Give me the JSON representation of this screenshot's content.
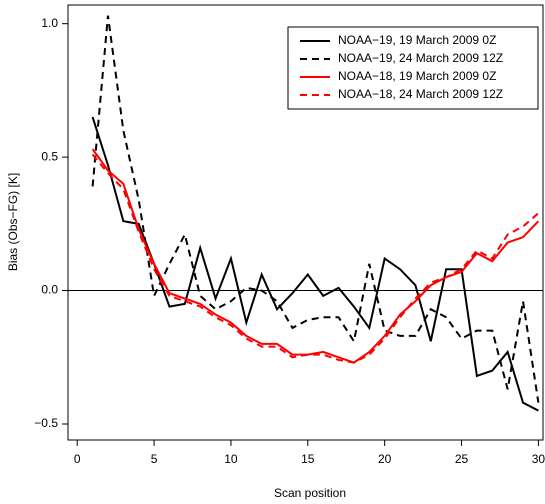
{
  "chart_data": {
    "type": "line",
    "xlabel": "Scan position",
    "ylabel": "Bias (Obs−FG) [K]",
    "x": [
      1,
      2,
      3,
      4,
      5,
      6,
      7,
      8,
      9,
      10,
      11,
      12,
      13,
      14,
      15,
      16,
      17,
      18,
      19,
      20,
      21,
      22,
      23,
      24,
      25,
      26,
      27,
      28,
      29,
      30
    ],
    "series": [
      {
        "name": "NOAA−19, 19 March 2009 0Z",
        "color": "#000000",
        "linestyle": "solid",
        "values": [
          0.65,
          0.47,
          0.26,
          0.25,
          0.1,
          -0.06,
          -0.05,
          0.16,
          -0.03,
          0.12,
          -0.12,
          0.06,
          -0.07,
          -0.01,
          0.06,
          -0.02,
          0.01,
          -0.06,
          -0.14,
          0.12,
          0.08,
          0.02,
          -0.19,
          0.08,
          0.08,
          -0.32,
          -0.3,
          -0.23,
          -0.42,
          -0.45
        ]
      },
      {
        "name": "NOAA−19, 24 March 2009 12Z",
        "color": "#000000",
        "linestyle": "dashed",
        "values": [
          0.39,
          1.03,
          0.6,
          0.34,
          -0.02,
          0.1,
          0.21,
          -0.02,
          -0.07,
          -0.04,
          0.01,
          0.0,
          -0.04,
          -0.14,
          -0.11,
          -0.1,
          -0.1,
          -0.19,
          0.1,
          -0.15,
          -0.17,
          -0.17,
          -0.07,
          -0.1,
          -0.18,
          -0.15,
          -0.15,
          -0.37,
          -0.04,
          -0.42
        ]
      },
      {
        "name": "NOAA−18, 19 March 2009 0Z",
        "color": "#ff0000",
        "linestyle": "solid",
        "values": [
          0.53,
          0.45,
          0.4,
          0.23,
          0.1,
          -0.01,
          -0.03,
          -0.05,
          -0.09,
          -0.12,
          -0.17,
          -0.2,
          -0.2,
          -0.24,
          -0.24,
          -0.23,
          -0.25,
          -0.27,
          -0.23,
          -0.17,
          -0.09,
          -0.04,
          0.02,
          0.05,
          0.07,
          0.14,
          0.11,
          0.18,
          0.2,
          0.26
        ]
      },
      {
        "name": "NOAA−18, 24 March 2009 12Z",
        "color": "#ff0000",
        "linestyle": "dashed",
        "values": [
          0.51,
          0.44,
          0.38,
          0.22,
          0.08,
          -0.02,
          -0.04,
          -0.06,
          -0.1,
          -0.13,
          -0.18,
          -0.21,
          -0.21,
          -0.25,
          -0.24,
          -0.24,
          -0.26,
          -0.27,
          -0.24,
          -0.18,
          -0.1,
          -0.03,
          0.03,
          0.05,
          0.08,
          0.15,
          0.12,
          0.21,
          0.24,
          0.29
        ]
      }
    ],
    "xlim": [
      -0.6,
      30.3
    ],
    "ylim": [
      -0.56,
      1.07
    ],
    "xticks": [
      0,
      5,
      10,
      15,
      20,
      25,
      30
    ],
    "yticks": [
      {
        "value": -0.5,
        "label": "−0.5"
      },
      {
        "value": 0,
        "label": "0.0"
      },
      {
        "value": 0.5,
        "label": "0.5"
      },
      {
        "value": 1,
        "label": "1.0"
      }
    ],
    "reference_line": 0,
    "legend": "top-right"
  }
}
